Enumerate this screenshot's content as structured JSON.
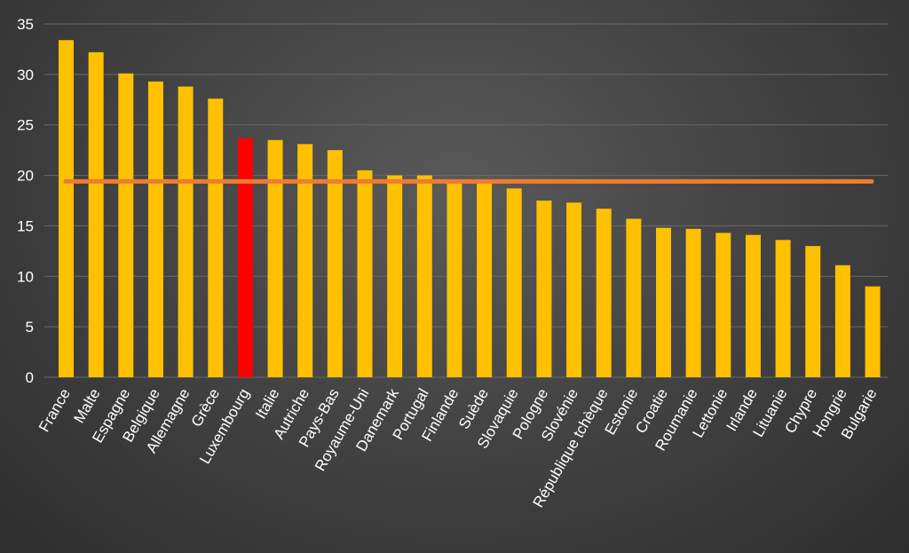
{
  "chart_data": {
    "type": "bar",
    "title": "",
    "xlabel": "",
    "ylabel": "",
    "ylim": [
      0,
      35
    ],
    "yticks": [
      0,
      5,
      10,
      15,
      20,
      25,
      30,
      35
    ],
    "grid": true,
    "categories": [
      "France",
      "Malte",
      "Espagne",
      "Belgique",
      "Allemagne",
      "Grèce",
      "Luxembourg",
      "Italie",
      "Autriche",
      "Pays-Bas",
      "Royaume-Uni",
      "Danemark",
      "Portugal",
      "Finlande",
      "Suède",
      "Slovaquie",
      "Pologne",
      "Slovénie",
      "République tchèque",
      "Estonie",
      "Croatie",
      "Roumanie",
      "Lettonie",
      "Irlande",
      "Lituanie",
      "Chypre",
      "Hongrie",
      "Bulgarie"
    ],
    "values": [
      33.4,
      32.2,
      30.1,
      29.3,
      28.8,
      27.6,
      23.7,
      23.5,
      23.1,
      22.5,
      20.5,
      20.0,
      20.0,
      19.4,
      19.4,
      18.7,
      17.5,
      17.3,
      16.7,
      15.7,
      14.8,
      14.7,
      14.3,
      14.1,
      13.6,
      13.0,
      11.1,
      9.0
    ],
    "reference_line": 19.4,
    "highlight": "Luxembourg",
    "colors": {
      "bar": "#FFC000",
      "highlight": "#FF0000",
      "reference_line": "#ED7D31"
    }
  }
}
